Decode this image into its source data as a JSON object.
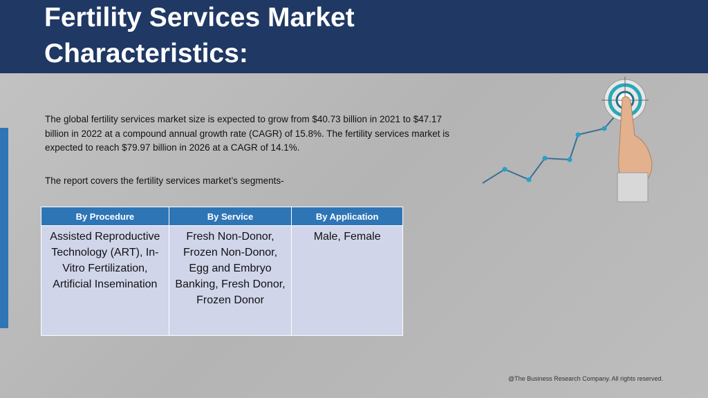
{
  "header": {
    "title": "Fertility Services Market Characteristics:"
  },
  "body": {
    "paragraphs": [
      "The global fertility services market size is expected to grow from $40.73 billion in 2021 to $47.17 billion in 2022 at a compound annual growth rate (CAGR) of 15.8%. The fertility services market is expected to reach $79.97 billion in 2026 at a CAGR of 14.1%.",
      "The report covers the fertility services market’s segments-"
    ]
  },
  "table": {
    "columns": [
      "By Procedure",
      "By Service",
      "By Application"
    ],
    "rows": [
      [
        "Assisted Reproductive Technology (ART), In-Vitro Fertilization, Artificial Insemination",
        "Fresh Non-Donor, Frozen Non-Donor, Egg and Embryo Banking, Fresh Donor, Frozen Donor",
        "Male, Female"
      ]
    ]
  },
  "footer": {
    "text": "@The Business Research Company. All rights reserved."
  }
}
